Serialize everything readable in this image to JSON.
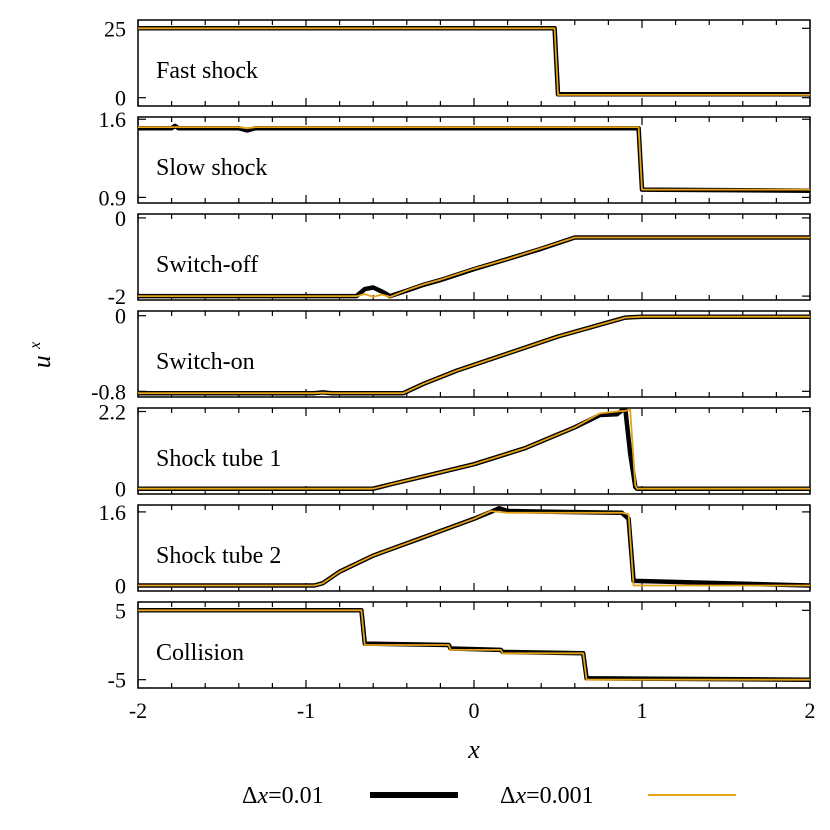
{
  "chart_data": {
    "type": "line",
    "xlabel": "x",
    "ylabel": "u",
    "ylabel_superscript": "x",
    "xlim": [
      -2,
      2
    ],
    "xticks": [
      -2,
      -1,
      0,
      1,
      2
    ],
    "xtick_labels": [
      "-2",
      "-1",
      "0",
      "1",
      "2"
    ],
    "legend": {
      "placement": "bottom",
      "entries": [
        {
          "symbol": "Δ",
          "var": "x",
          "value": "=0.01",
          "color": "#000000"
        },
        {
          "symbol": "Δ",
          "var": "x",
          "value": "=0.001",
          "color": "#e6a317"
        }
      ]
    },
    "colors": {
      "coarse": "#000000",
      "fine": "#e6a317"
    },
    "panels": [
      {
        "label": "Fast shock",
        "ylim": [
          -3,
          28
        ],
        "yticks": [
          0,
          25
        ],
        "ytick_labels": [
          "0",
          "25"
        ],
        "x": [
          -2,
          0.48,
          0.5,
          2
        ],
        "fine": [
          25,
          25,
          1.0,
          1.0
        ],
        "coarse": [
          25,
          25,
          1.2,
          1.2
        ]
      },
      {
        "label": "Slow shock",
        "ylim": [
          0.85,
          1.62
        ],
        "yticks": [
          0.9,
          1.6
        ],
        "ytick_labels": [
          "0.9",
          "1.6"
        ],
        "x": [
          -2,
          -1.8,
          -1.78,
          -1.76,
          -1.4,
          -1.35,
          -1.3,
          0.95,
          0.98,
          1.0,
          2
        ],
        "fine": [
          1.53,
          1.53,
          1.53,
          1.53,
          1.53,
          1.52,
          1.53,
          1.53,
          1.53,
          0.97,
          0.97
        ],
        "coarse": [
          1.52,
          1.52,
          1.54,
          1.52,
          1.52,
          1.5,
          1.52,
          1.52,
          1.52,
          0.97,
          0.96
        ]
      },
      {
        "label": "Switch-off",
        "ylim": [
          -2.1,
          0.1
        ],
        "yticks": [
          -2,
          0
        ],
        "ytick_labels": [
          "-2",
          "0"
        ],
        "x": [
          -2,
          -0.75,
          -0.7,
          -0.65,
          -0.6,
          -0.55,
          -0.5,
          -0.4,
          -0.3,
          -0.2,
          0,
          0.2,
          0.4,
          0.6,
          2
        ],
        "fine": [
          -2.0,
          -2.0,
          -2.0,
          -1.95,
          -2.02,
          -1.96,
          -2.02,
          -1.85,
          -1.7,
          -1.58,
          -1.3,
          -1.05,
          -0.78,
          -0.5,
          -0.5
        ],
        "coarse": [
          -2.0,
          -2.0,
          -2.0,
          -1.82,
          -1.78,
          -1.88,
          -2.0,
          -1.86,
          -1.71,
          -1.59,
          -1.31,
          -1.05,
          -0.79,
          -0.5,
          -0.5
        ]
      },
      {
        "label": "Switch-on",
        "ylim": [
          -0.86,
          0.05
        ],
        "yticks": [
          -0.8,
          0
        ],
        "ytick_labels": [
          "-0.8",
          "0"
        ],
        "x": [
          -2,
          -0.95,
          -0.9,
          -0.85,
          -0.42,
          -0.3,
          -0.1,
          0.2,
          0.5,
          0.9,
          1.0,
          2
        ],
        "fine": [
          -0.82,
          -0.82,
          -0.815,
          -0.82,
          -0.82,
          -0.72,
          -0.58,
          -0.4,
          -0.22,
          -0.02,
          -0.01,
          -0.01
        ],
        "coarse": [
          -0.82,
          -0.82,
          -0.81,
          -0.82,
          -0.82,
          -0.72,
          -0.58,
          -0.4,
          -0.22,
          -0.02,
          -0.01,
          -0.01
        ]
      },
      {
        "label": "Shock tube 1",
        "ylim": [
          -0.15,
          2.3
        ],
        "yticks": [
          0,
          2.2
        ],
        "ytick_labels": [
          "0",
          "2.2"
        ],
        "x": [
          -2,
          -0.6,
          -0.5,
          -0.3,
          0,
          0.3,
          0.6,
          0.75,
          0.85,
          0.9,
          0.93,
          0.96,
          0.97,
          2
        ],
        "fine": [
          0,
          0,
          0.12,
          0.35,
          0.7,
          1.15,
          1.75,
          2.15,
          2.2,
          2.22,
          2.25,
          0.1,
          0,
          0
        ],
        "coarse": [
          0,
          0,
          0.12,
          0.35,
          0.7,
          1.15,
          1.75,
          2.1,
          2.12,
          2.3,
          1.0,
          0.05,
          0,
          0
        ]
      },
      {
        "label": "Shock tube 2",
        "ylim": [
          -0.12,
          1.75
        ],
        "yticks": [
          0,
          1.6
        ],
        "ytick_labels": [
          "0",
          "1.6"
        ],
        "x": [
          -2,
          -0.95,
          -0.9,
          -0.8,
          -0.6,
          -0.3,
          0,
          0.1,
          0.15,
          0.2,
          0.5,
          0.88,
          0.92,
          0.95,
          2
        ],
        "fine": [
          0,
          0,
          0.05,
          0.3,
          0.65,
          1.05,
          1.45,
          1.62,
          1.6,
          1.58,
          1.58,
          1.58,
          1.55,
          0,
          0
        ],
        "coarse": [
          0,
          0,
          0.05,
          0.3,
          0.65,
          1.05,
          1.45,
          1.6,
          1.68,
          1.62,
          1.6,
          1.58,
          1.45,
          0.1,
          0
        ]
      },
      {
        "label": "Collision",
        "ylim": [
          -6.2,
          6.2
        ],
        "yticks": [
          -5,
          5
        ],
        "ytick_labels": [
          "-5",
          "5"
        ],
        "x": [
          -2,
          -0.67,
          -0.65,
          -0.15,
          -0.14,
          0.16,
          0.17,
          0.65,
          0.67,
          2
        ],
        "fine": [
          5,
          5,
          0,
          0,
          -0.7,
          -0.7,
          -1.2,
          -1.2,
          -5,
          -5
        ],
        "coarse": [
          5,
          5,
          0.2,
          0,
          -0.5,
          -0.7,
          -1.0,
          -1.2,
          -4.8,
          -5
        ]
      }
    ]
  }
}
